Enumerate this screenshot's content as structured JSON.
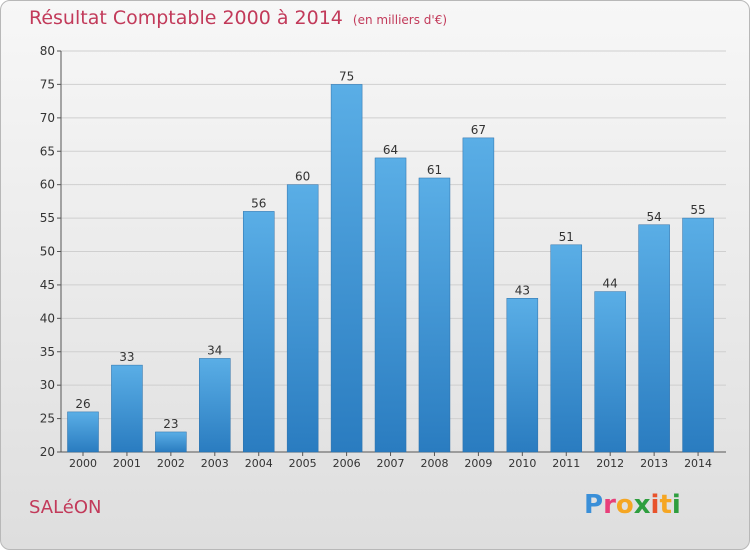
{
  "title": "Résultat Comptable 2000 à 2014",
  "subtitle": "(en milliers d'€)",
  "commune": "SALéON",
  "logo": {
    "text": "Proxiti",
    "letters": [
      "P",
      "r",
      "o",
      "x",
      "i",
      "t",
      "i"
    ],
    "colors": [
      "#3a8fd8",
      "#e83f7a",
      "#f5a623",
      "#2e9e3e",
      "#e8532c",
      "#f5a623",
      "#2e9e3e"
    ]
  },
  "colors": {
    "title": "#c23a5a",
    "bar_top": "#5aaee6",
    "bar_bottom": "#2a7cc0",
    "axis": "#555555"
  },
  "chart_data": {
    "type": "bar",
    "title": "Résultat Comptable 2000 à 2014",
    "xlabel": "",
    "ylabel": "",
    "ylim": [
      20,
      80
    ],
    "yticks": [
      20,
      25,
      30,
      35,
      40,
      45,
      50,
      55,
      60,
      65,
      70,
      75,
      80
    ],
    "grid": true,
    "categories": [
      "2000",
      "2001",
      "2002",
      "2003",
      "2004",
      "2005",
      "2006",
      "2007",
      "2008",
      "2009",
      "2010",
      "2011",
      "2012",
      "2013",
      "2014"
    ],
    "values": [
      26,
      33,
      23,
      34,
      56,
      60,
      75,
      64,
      61,
      67,
      43,
      51,
      44,
      54,
      55
    ]
  }
}
